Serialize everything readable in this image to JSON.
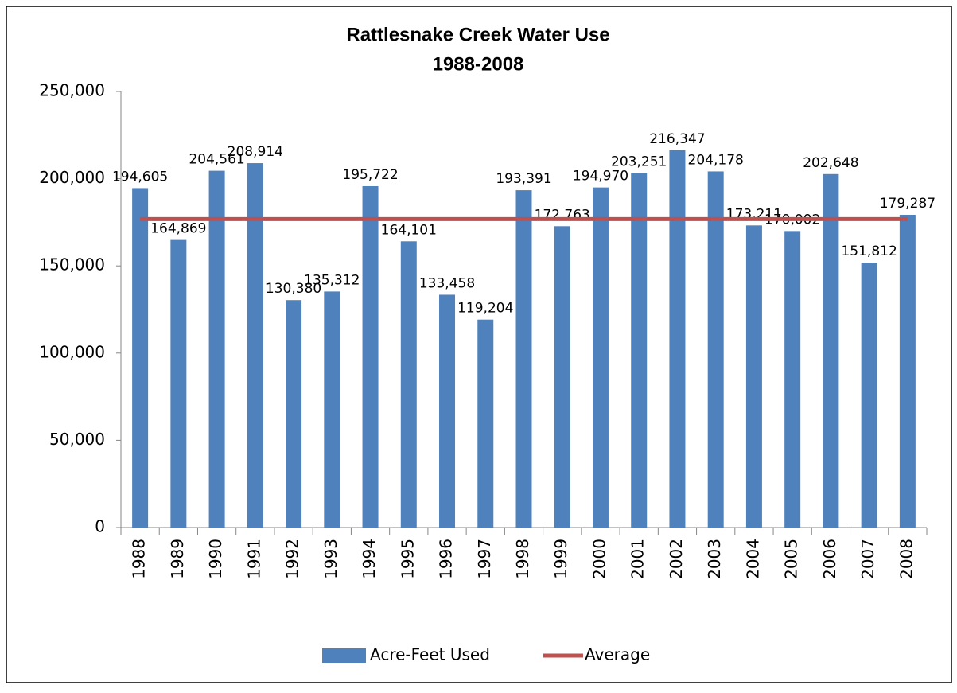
{
  "chart_data": {
    "type": "bar",
    "title": "Rattlesnake Creek Water Use",
    "subtitle": "1988-2008",
    "categories": [
      "1988",
      "1989",
      "1990",
      "1991",
      "1992",
      "1993",
      "1994",
      "1995",
      "1996",
      "1997",
      "1998",
      "1999",
      "2000",
      "2001",
      "2002",
      "2003",
      "2004",
      "2005",
      "2006",
      "2007",
      "2008"
    ],
    "series": [
      {
        "name": "Acre-Feet Used",
        "color": "#4f81bd",
        "values": [
          194605,
          164869,
          204561,
          208914,
          130380,
          135312,
          195722,
          164101,
          133458,
          119204,
          193391,
          172763,
          194970,
          203251,
          216347,
          204178,
          173211,
          170002,
          202648,
          151812,
          179287
        ],
        "value_labels": [
          "194,605",
          "164,869",
          "204,561",
          "208,914",
          "130,380",
          "135,312",
          "195,722",
          "164,101",
          "133,458",
          "119,204",
          "193,391",
          "172,763",
          "194,970",
          "203,251",
          "216,347",
          "204,178",
          "173,211",
          "170,002",
          "202,648",
          "151,812",
          "179,287"
        ]
      },
      {
        "name": "Average",
        "color": "#c0504d",
        "type": "line",
        "values": [
          176809,
          176809,
          176809,
          176809,
          176809,
          176809,
          176809,
          176809,
          176809,
          176809,
          176809,
          176809,
          176809,
          176809,
          176809,
          176809,
          176809,
          176809,
          176809,
          176809,
          176809
        ]
      }
    ],
    "ylim": [
      0,
      250000
    ],
    "yticks": [
      0,
      {
        "value": 50000,
        "label": "50,000"
      },
      {
        "value": 100000,
        "label": "100,000"
      },
      {
        "value": 150000,
        "label": "150,000"
      },
      {
        "value": 200000,
        "label": "200,000"
      },
      {
        "value": 250000,
        "label": "250,000"
      }
    ],
    "grid": false,
    "legend": "bottom"
  }
}
